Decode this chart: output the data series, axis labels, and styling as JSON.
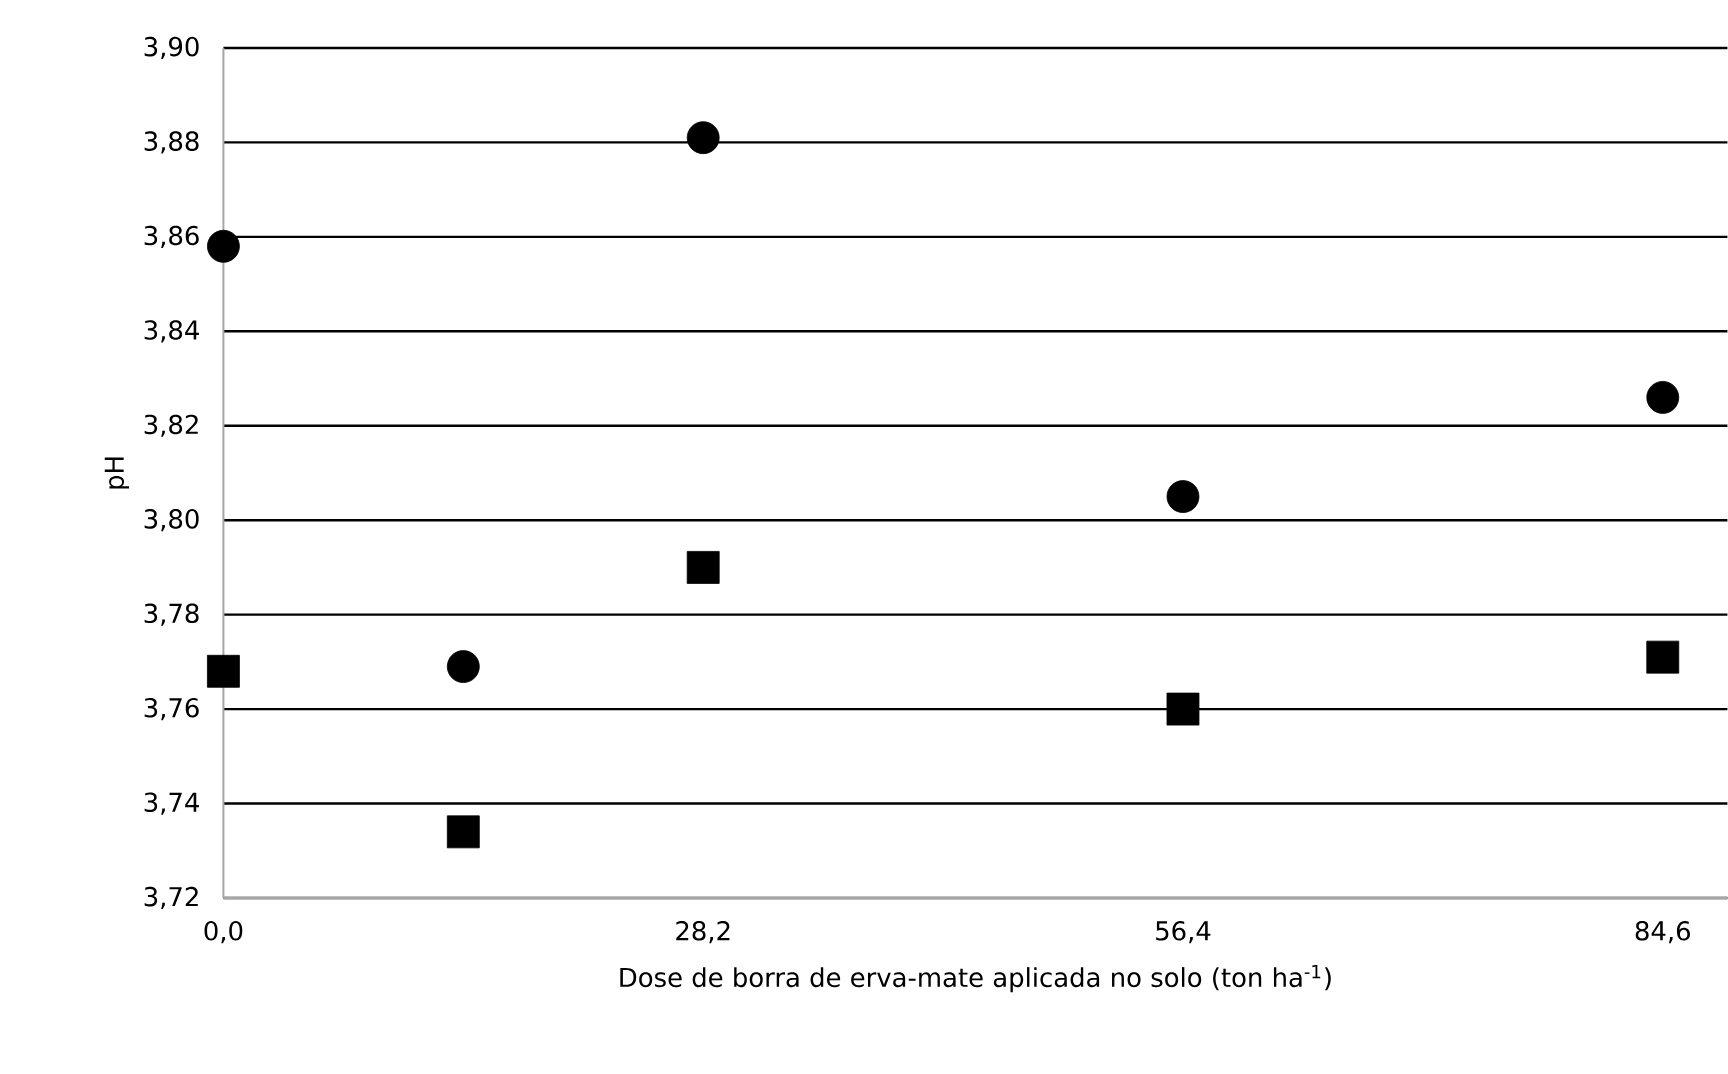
{
  "chart_data": {
    "type": "scatter",
    "xlabel": "Dose  de borra de erva-mate aplicada no solo (ton ha$^{-1}$)",
    "ylabel": "pH",
    "x": [
      0,
      14.1,
      28.2,
      56.4,
      84.6
    ],
    "series": [
      {
        "color": "#000000",
        "marker": "circle",
        "values": [
          3.858,
          3.769,
          3.881,
          3.805,
          3.826
        ]
      },
      {
        "color": "#000000",
        "marker": "square",
        "values": [
          3.768,
          3.734,
          3.79,
          3.76,
          3.771
        ]
      }
    ],
    "xlim": [
      0,
      88.4
    ],
    "xticks": [
      {
        "value": 0,
        "label": "0,0"
      },
      {
        "value": 28.2,
        "label": "28,2"
      },
      {
        "value": 56.4,
        "label": "56,4"
      },
      {
        "value": 84.6,
        "label": "84,6"
      }
    ],
    "ylim": [
      3.72,
      3.9
    ],
    "yticks": [
      {
        "value": 3.72,
        "label": "3,72"
      },
      {
        "value": 3.74,
        "label": "3,74"
      },
      {
        "value": 3.76,
        "label": "3,76"
      },
      {
        "value": 3.78,
        "label": "3,78"
      },
      {
        "value": 3.8,
        "label": "3,80"
      },
      {
        "value": 3.82,
        "label": "3,82"
      },
      {
        "value": 3.84,
        "label": "3,84"
      },
      {
        "value": 3.86,
        "label": "3,86"
      },
      {
        "value": 3.88,
        "label": "3,88"
      },
      {
        "value": 3.9,
        "label": "3,90"
      }
    ],
    "grid": "y"
  }
}
